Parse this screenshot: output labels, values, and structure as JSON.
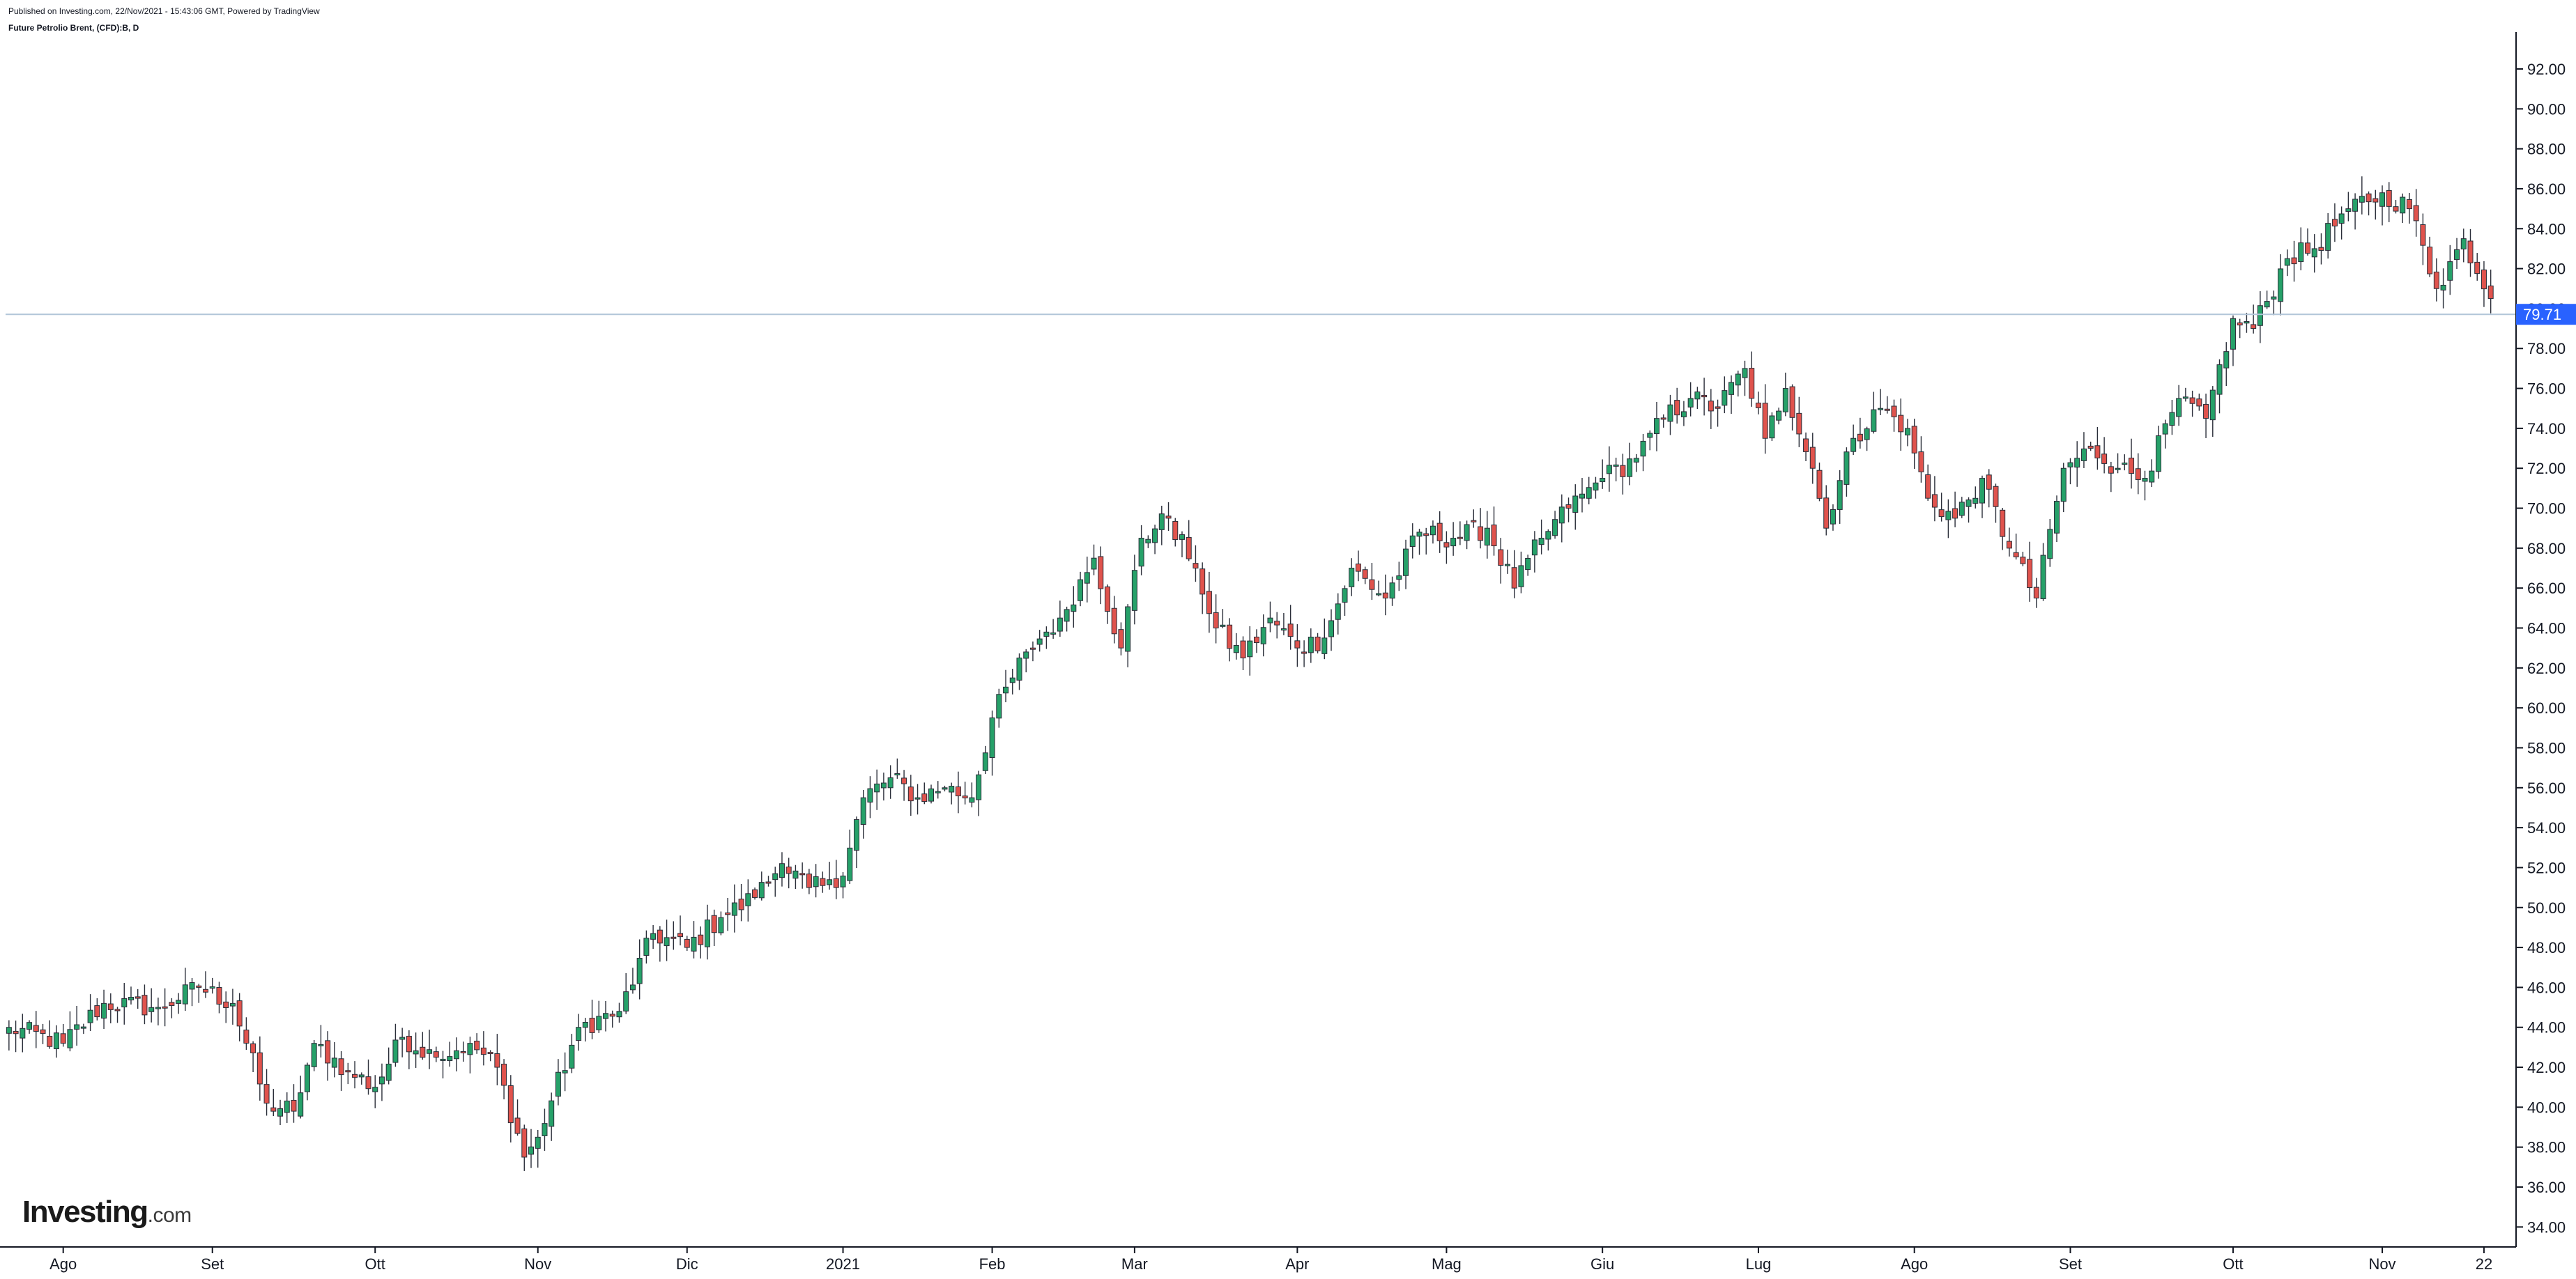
{
  "header": {
    "published": "Published on Investing.com, 22/Nov/2021 - 15:43:06 GMT, Powered by TradingView",
    "symbol": "Future Petrolio Brent, (CFD):B, D"
  },
  "logo": {
    "brand": "Investing",
    "tld": ".com"
  },
  "colors": {
    "up": "#26a169",
    "down": "#e0534d",
    "wick": "#2a2e39",
    "last_price_line": "#b2c5d8",
    "last_price_tag": "#2962ff",
    "axis": "#131722"
  },
  "chart_data": {
    "type": "candlestick",
    "title": "",
    "xlabel": "",
    "ylabel": "",
    "ylim": [
      33,
      93.5
    ],
    "y_ticks": [
      "34.00",
      "36.00",
      "38.00",
      "40.00",
      "42.00",
      "44.00",
      "46.00",
      "48.00",
      "50.00",
      "52.00",
      "54.00",
      "56.00",
      "58.00",
      "60.00",
      "62.00",
      "64.00",
      "66.00",
      "68.00",
      "70.00",
      "72.00",
      "74.00",
      "76.00",
      "78.00",
      "80.00",
      "82.00",
      "84.00",
      "86.00",
      "88.00",
      "90.00",
      "92.00"
    ],
    "x_tick_labels": [
      "Ago",
      "Set",
      "Ott",
      "Nov",
      "Dic",
      "2021",
      "Feb",
      "Mar",
      "Apr",
      "Mag",
      "Giu",
      "Lug",
      "Ago",
      "Set",
      "Ott",
      "Nov",
      "22"
    ],
    "x_tick_bar_index": [
      8,
      30,
      54,
      78,
      100,
      123,
      145,
      166,
      190,
      212,
      235,
      258,
      281,
      304,
      328,
      350,
      365
    ],
    "bar_count": 367,
    "last_price": 79.71,
    "last_price_label": "79.71",
    "anchors": [
      [
        0,
        44.0
      ],
      [
        8,
        43.2
      ],
      [
        14,
        45.2
      ],
      [
        22,
        45.0
      ],
      [
        28,
        46.0
      ],
      [
        33,
        45.2
      ],
      [
        38,
        40.2
      ],
      [
        42,
        39.8
      ],
      [
        45,
        43.2
      ],
      [
        50,
        41.8
      ],
      [
        54,
        41.0
      ],
      [
        58,
        43.5
      ],
      [
        63,
        42.5
      ],
      [
        68,
        43.2
      ],
      [
        72,
        42.0
      ],
      [
        76,
        37.5
      ],
      [
        78,
        38.5
      ],
      [
        84,
        44.0
      ],
      [
        90,
        44.8
      ],
      [
        95,
        48.7
      ],
      [
        100,
        48.0
      ],
      [
        105,
        49.5
      ],
      [
        110,
        50.5
      ],
      [
        114,
        52.2
      ],
      [
        118,
        51.0
      ],
      [
        122,
        51.0
      ],
      [
        126,
        55.5
      ],
      [
        130,
        56.5
      ],
      [
        134,
        55.5
      ],
      [
        138,
        56.0
      ],
      [
        142,
        55.5
      ],
      [
        145,
        59.5
      ],
      [
        150,
        62.8
      ],
      [
        155,
        64.5
      ],
      [
        160,
        67.5
      ],
      [
        164,
        63.0
      ],
      [
        167,
        68.5
      ],
      [
        171,
        69.5
      ],
      [
        175,
        67.0
      ],
      [
        178,
        64.0
      ],
      [
        182,
        62.5
      ],
      [
        186,
        64.5
      ],
      [
        190,
        63.0
      ],
      [
        194,
        63.5
      ],
      [
        198,
        67.0
      ],
      [
        203,
        65.5
      ],
      [
        208,
        68.8
      ],
      [
        213,
        68.5
      ],
      [
        218,
        69.0
      ],
      [
        222,
        66.0
      ],
      [
        226,
        68.5
      ],
      [
        230,
        70.0
      ],
      [
        235,
        71.5
      ],
      [
        240,
        72.5
      ],
      [
        244,
        74.5
      ],
      [
        248,
        75.5
      ],
      [
        252,
        75.0
      ],
      [
        256,
        77.0
      ],
      [
        259,
        73.5
      ],
      [
        262,
        76.0
      ],
      [
        266,
        72.0
      ],
      [
        268,
        69.0
      ],
      [
        272,
        73.5
      ],
      [
        276,
        75.0
      ],
      [
        280,
        74.0
      ],
      [
        283,
        70.5
      ],
      [
        287,
        69.5
      ],
      [
        291,
        71.5
      ],
      [
        295,
        68.0
      ],
      [
        299,
        65.5
      ],
      [
        303,
        72.0
      ],
      [
        307,
        73.0
      ],
      [
        311,
        72.0
      ],
      [
        315,
        71.5
      ],
      [
        320,
        75.5
      ],
      [
        324,
        74.5
      ],
      [
        328,
        79.5
      ],
      [
        331,
        79.0
      ],
      [
        336,
        82.5
      ],
      [
        340,
        83.0
      ],
      [
        345,
        85.0
      ],
      [
        350,
        85.8
      ],
      [
        354,
        85.0
      ],
      [
        358,
        81.0
      ],
      [
        362,
        83.5
      ],
      [
        366,
        80.5
      ],
      [
        368,
        78.8
      ],
      [
        369,
        79.71
      ]
    ]
  }
}
